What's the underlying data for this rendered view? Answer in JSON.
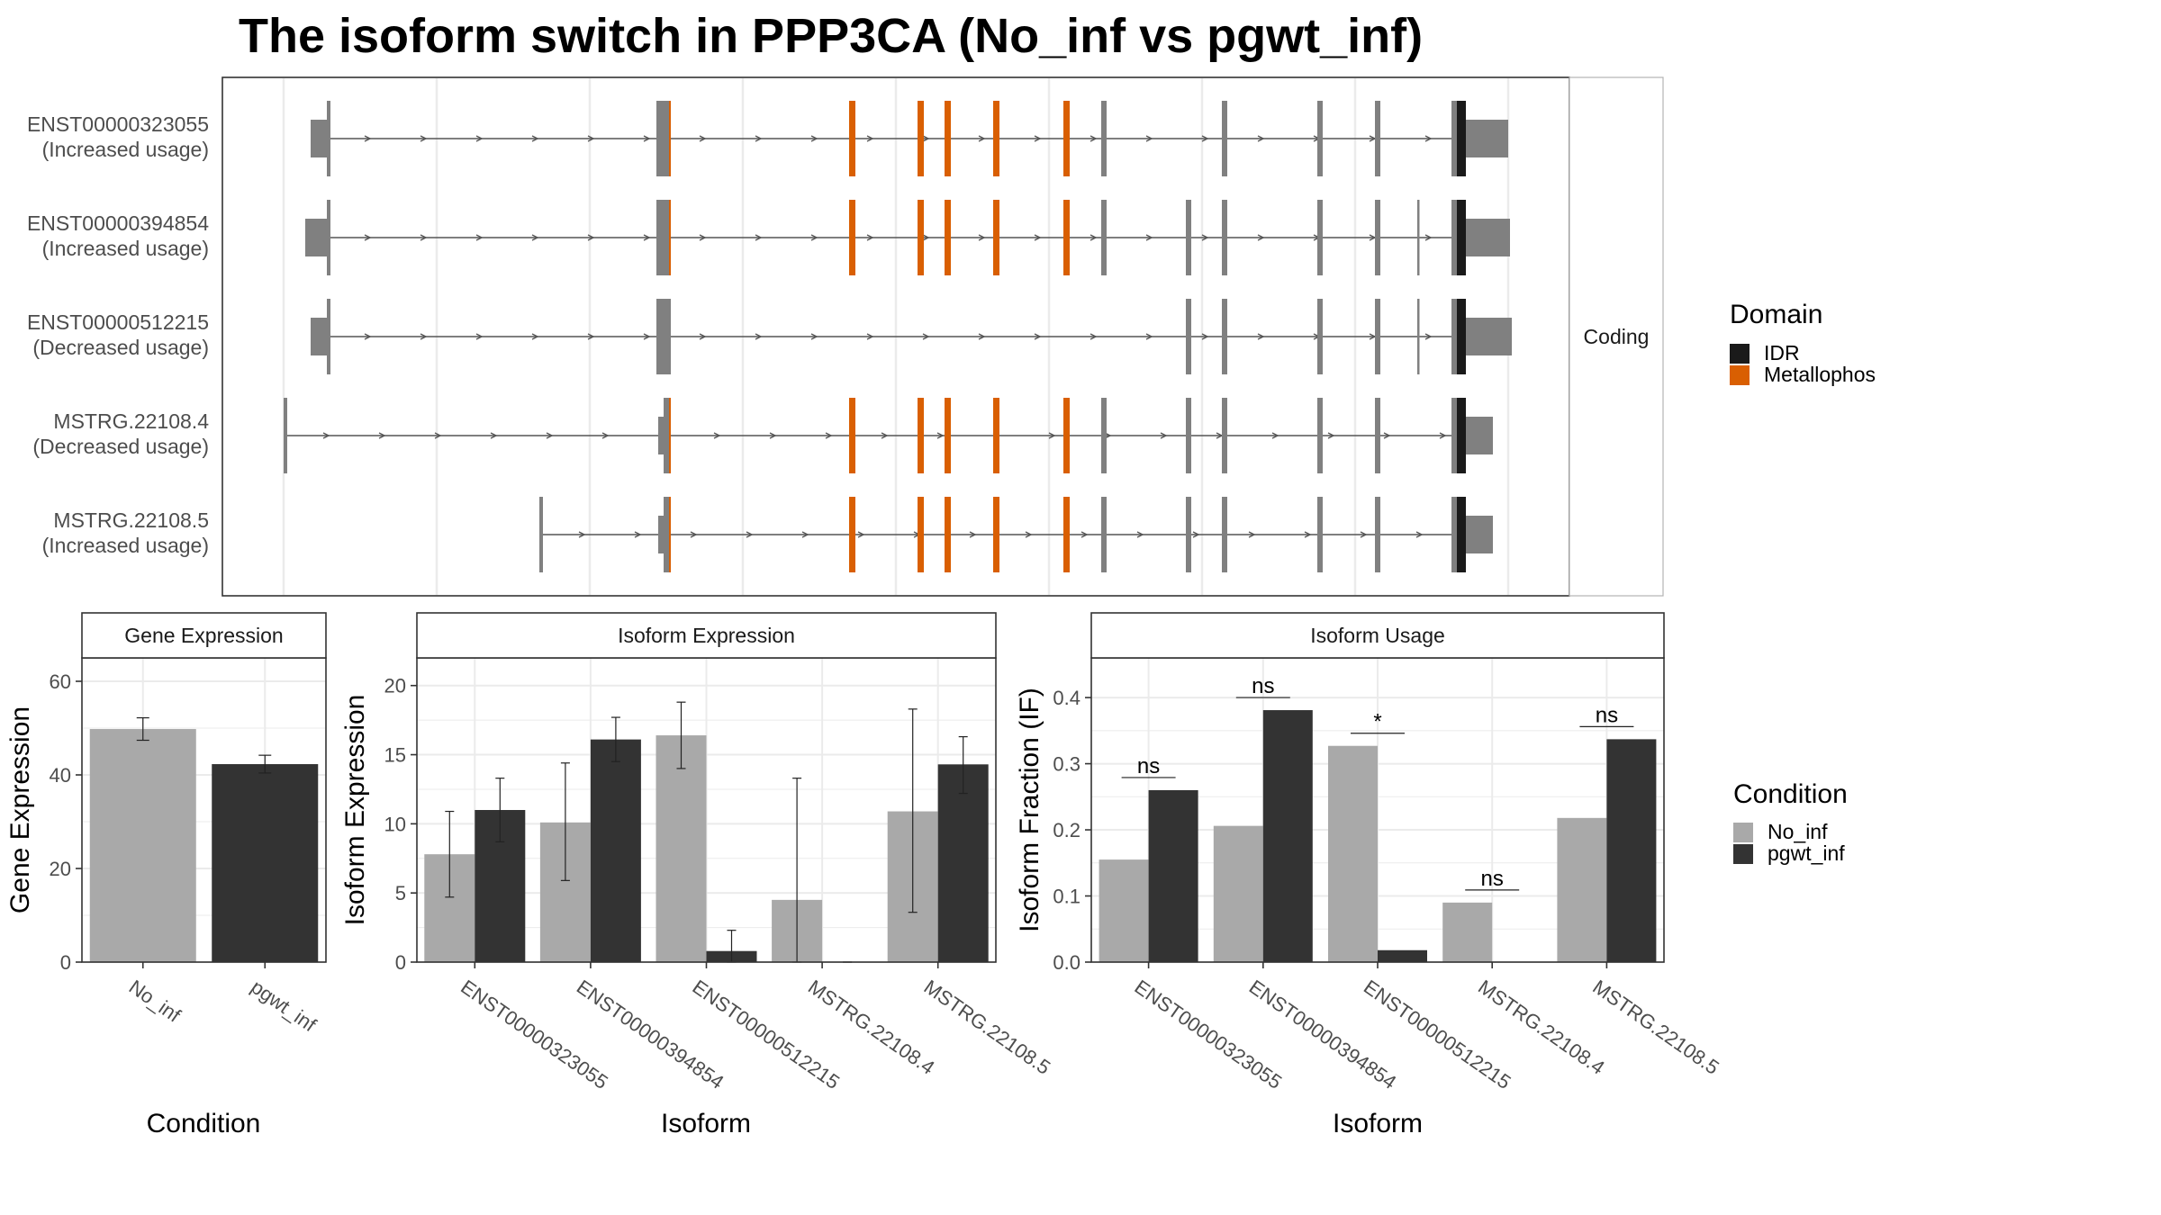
{
  "title": "The isoform switch in PPP3CA (No_inf vs pgwt_inf)",
  "colors": {
    "exon": "#808080",
    "idr": "#1a1a1a",
    "metallophos": "#d95f02",
    "no_inf": "#a9a9a9",
    "pgwt_inf": "#333333",
    "grid": "#ebebeb",
    "panel_border": "#333333",
    "strip_border": "#b3b3b3",
    "intron": "#555555"
  },
  "structure_panel": {
    "strip_label": "Coding",
    "isoforms": [
      {
        "id": "ENST00000323055",
        "usage": "(Increased usage)"
      },
      {
        "id": "ENST00000394854",
        "usage": "(Increased usage)"
      },
      {
        "id": "ENST00000512215",
        "usage": "(Decreased usage)"
      },
      {
        "id": "MSTRG.22108.4",
        "usage": "(Decreased usage)"
      },
      {
        "id": "MSTRG.22108.5",
        "usage": "(Increased usage)"
      }
    ],
    "legend": {
      "title": "Domain",
      "items": [
        {
          "label": "IDR",
          "color": "#1a1a1a"
        },
        {
          "label": "Metallophos",
          "color": "#d95f02"
        }
      ]
    }
  },
  "condition_legend": {
    "title": "Condition",
    "items": [
      {
        "label": "No_inf",
        "color": "#a9a9a9"
      },
      {
        "label": "pgwt_inf",
        "color": "#333333"
      }
    ]
  },
  "chart_data": [
    {
      "type": "bar",
      "title": "Gene Expression",
      "xlabel": "Condition",
      "ylabel": "Gene Expression",
      "ylim": [
        0,
        65
      ],
      "yticks": [
        0,
        20,
        40,
        60
      ],
      "categories": [
        "No_inf",
        "pgwt_inf"
      ],
      "values": [
        49.8,
        42.3
      ],
      "error_low": [
        47.4,
        40.4
      ],
      "error_high": [
        52.2,
        44.2
      ]
    },
    {
      "type": "bar",
      "title": "Isoform Expression",
      "xlabel": "Isoform",
      "ylabel": "Isoform Expression",
      "ylim": [
        0,
        22
      ],
      "yticks": [
        0,
        5,
        10,
        15,
        20
      ],
      "categories": [
        "ENST00000323055",
        "ENST00000394854",
        "ENST00000512215",
        "MSTRG.22108.4",
        "MSTRG.22108.5"
      ],
      "series": [
        {
          "name": "No_inf",
          "values": [
            7.8,
            10.1,
            16.4,
            4.5,
            10.9
          ],
          "error_low": [
            4.7,
            5.9,
            14.0,
            0.0,
            3.6
          ],
          "error_high": [
            10.9,
            14.4,
            18.8,
            13.3,
            18.3
          ]
        },
        {
          "name": "pgwt_inf",
          "values": [
            11.0,
            16.1,
            0.8,
            0.0,
            14.3
          ],
          "error_low": [
            8.7,
            14.5,
            0.0,
            0.0,
            12.2
          ],
          "error_high": [
            13.3,
            17.7,
            2.3,
            0.0,
            16.3
          ]
        }
      ]
    },
    {
      "type": "bar",
      "title": "Isoform Usage",
      "xlabel": "Isoform",
      "ylabel": "Isoform Fraction (IF)",
      "ylim": [
        0,
        0.46
      ],
      "yticks": [
        0.0,
        0.1,
        0.2,
        0.3,
        0.4
      ],
      "categories": [
        "ENST00000323055",
        "ENST00000394854",
        "ENST00000512215",
        "MSTRG.22108.4",
        "MSTRG.22108.5"
      ],
      "series": [
        {
          "name": "No_inf",
          "values": [
            0.155,
            0.206,
            0.327,
            0.09,
            0.218
          ]
        },
        {
          "name": "pgwt_inf",
          "values": [
            0.26,
            0.381,
            0.018,
            0.0,
            0.337
          ]
        }
      ],
      "significance": [
        "ns",
        "ns",
        "*",
        "ns",
        "ns"
      ]
    }
  ]
}
